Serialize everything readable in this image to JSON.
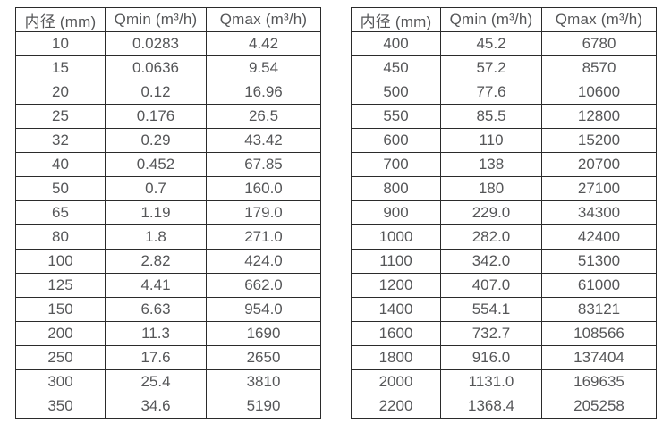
{
  "page": {
    "background_color": "#ffffff",
    "text_color": "#555658",
    "border_color": "#2b2b2b"
  },
  "tables": [
    {
      "title": "small-diameter-flow-ranges",
      "headers": [
        "内径 (mm)",
        "Qmin (m³/h)",
        "Qmax (m³/h)"
      ],
      "rows": [
        [
          "10",
          "0.0283",
          "4.42"
        ],
        [
          "15",
          "0.0636",
          "9.54"
        ],
        [
          "20",
          "0.12",
          "16.96"
        ],
        [
          "25",
          "0.176",
          "26.5"
        ],
        [
          "32",
          "0.29",
          "43.42"
        ],
        [
          "40",
          "0.452",
          "67.85"
        ],
        [
          "50",
          "0.7",
          "160.0"
        ],
        [
          "65",
          "1.19",
          "179.0"
        ],
        [
          "80",
          "1.8",
          "271.0"
        ],
        [
          "100",
          "2.82",
          "424.0"
        ],
        [
          "125",
          "4.41",
          "662.0"
        ],
        [
          "150",
          "6.63",
          "954.0"
        ],
        [
          "200",
          "11.3",
          "1690"
        ],
        [
          "250",
          "17.6",
          "2650"
        ],
        [
          "300",
          "25.4",
          "3810"
        ],
        [
          "350",
          "34.6",
          "5190"
        ]
      ]
    },
    {
      "title": "large-diameter-flow-ranges",
      "headers": [
        "内径 (mm)",
        "Qmin (m³/h)",
        "Qmax (m³/h)"
      ],
      "rows": [
        [
          "400",
          "45.2",
          "6780"
        ],
        [
          "450",
          "57.2",
          "8570"
        ],
        [
          "500",
          "77.6",
          "10600"
        ],
        [
          "550",
          "85.5",
          "12800"
        ],
        [
          "600",
          "110",
          "15200"
        ],
        [
          "700",
          "138",
          "20700"
        ],
        [
          "800",
          "180",
          "27100"
        ],
        [
          "900",
          "229.0",
          "34300"
        ],
        [
          "1000",
          "282.0",
          "42400"
        ],
        [
          "1100",
          "342.0",
          "51300"
        ],
        [
          "1200",
          "407.0",
          "61000"
        ],
        [
          "1400",
          "554.1",
          "83121"
        ],
        [
          "1600",
          "732.7",
          "108566"
        ],
        [
          "1800",
          "916.0",
          "137404"
        ],
        [
          "2000",
          "1131.0",
          "169635"
        ],
        [
          "2200",
          "1368.4",
          "205258"
        ]
      ]
    }
  ]
}
